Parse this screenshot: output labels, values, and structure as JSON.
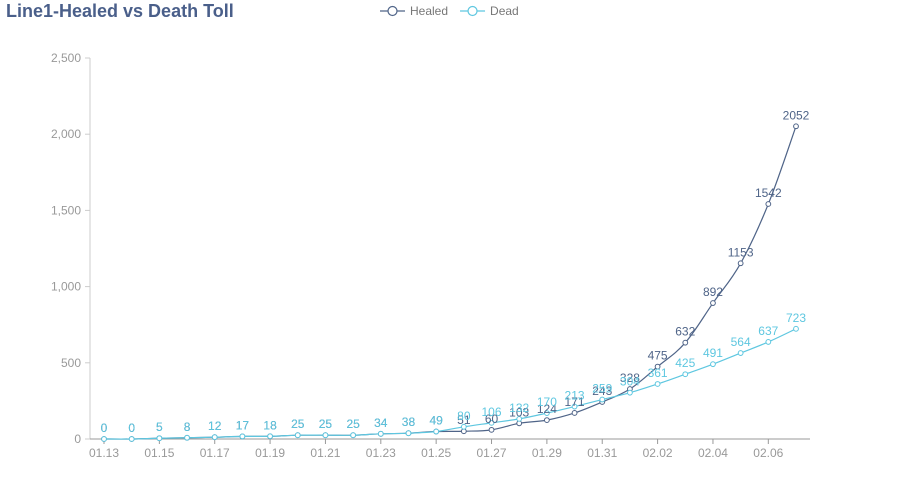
{
  "title": "Line1-Healed vs Death Toll",
  "colors": {
    "healed": "#4f6488",
    "dead": "#5ec7e0",
    "axis": "#999999",
    "grid": "#eeeeee"
  },
  "chart_data": {
    "type": "line",
    "title": "Line1-Healed vs Death Toll",
    "categories": [
      "01.13",
      "01.14",
      "01.15",
      "01.16",
      "01.17",
      "01.18",
      "01.19",
      "01.20",
      "01.21",
      "01.22",
      "01.23",
      "01.24",
      "01.25",
      "01.26",
      "01.27",
      "01.28",
      "01.29",
      "01.30",
      "01.31",
      "02.01",
      "02.02",
      "02.03",
      "02.04",
      "02.05",
      "02.06",
      "02.07"
    ],
    "x_tick_labels": [
      "01.13",
      "01.15",
      "01.17",
      "01.19",
      "01.21",
      "01.23",
      "01.25",
      "01.27",
      "01.29",
      "01.31",
      "02.02",
      "02.04",
      "02.06"
    ],
    "y_ticks": [
      "0",
      "500",
      "1,000",
      "1,500",
      "2,000",
      "2,500"
    ],
    "ylim": [
      0,
      2500
    ],
    "legend_position": "top-center",
    "series": [
      {
        "name": "Healed",
        "color": "#4f6488",
        "values": [
          0,
          0,
          5,
          8,
          12,
          17,
          18,
          25,
          25,
          25,
          34,
          38,
          49,
          51,
          60,
          103,
          124,
          171,
          243,
          328,
          475,
          632,
          892,
          1153,
          1542,
          2052
        ]
      },
      {
        "name": "Dead",
        "color": "#5ec7e0",
        "values": [
          0,
          0,
          5,
          8,
          12,
          17,
          18,
          25,
          25,
          25,
          34,
          38,
          49,
          80,
          106,
          132,
          170,
          213,
          259,
          304,
          361,
          425,
          491,
          564,
          637,
          723
        ]
      }
    ]
  }
}
